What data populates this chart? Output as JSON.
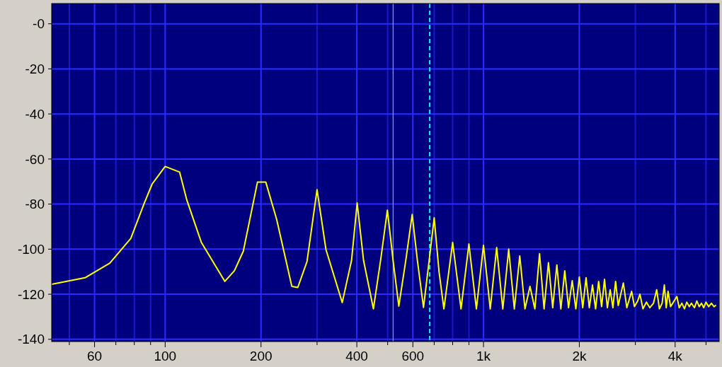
{
  "chart_data": {
    "type": "line",
    "log": "x",
    "grid": true,
    "marker": "none",
    "line_style": "solid",
    "xlim": [
      44,
      5500
    ],
    "ylim": [
      -141,
      9
    ],
    "xticks": [
      {
        "value": 50,
        "label": null
      },
      {
        "value": 60,
        "label": "60"
      },
      {
        "value": 70,
        "label": null
      },
      {
        "value": 80,
        "label": null
      },
      {
        "value": 90,
        "label": null
      },
      {
        "value": 100,
        "label": "100"
      },
      {
        "value": 200,
        "label": "200"
      },
      {
        "value": 300,
        "label": null
      },
      {
        "value": 400,
        "label": "400"
      },
      {
        "value": 500,
        "label": null
      },
      {
        "value": 600,
        "label": "600"
      },
      {
        "value": 700,
        "label": null
      },
      {
        "value": 800,
        "label": null
      },
      {
        "value": 900,
        "label": null
      },
      {
        "value": 1000,
        "label": "1k"
      },
      {
        "value": 2000,
        "label": "2k"
      },
      {
        "value": 3000,
        "label": null
      },
      {
        "value": 4000,
        "label": "4k"
      },
      {
        "value": 5000,
        "label": null
      }
    ],
    "yticks": [
      {
        "value": 0,
        "label": "-0"
      },
      -20,
      -40,
      -60,
      -80,
      -100,
      -120,
      -140
    ],
    "ref_lines": [
      {
        "axis": "x",
        "value": 520,
        "color": "#6fd8e8",
        "line_style": "solid"
      },
      {
        "axis": "x",
        "value": 678,
        "color": "#00ffff",
        "line_style": "dashed"
      }
    ],
    "series": [
      {
        "color": "#ffff00",
        "x": [
          44,
          56,
          67,
          78,
          86,
          91,
          100,
          111,
          117,
          130,
          154,
          165,
          176,
          195,
          207,
          224,
          250,
          261,
          279,
          300,
          320,
          360,
          385,
          401,
          420,
          451,
          475,
          499,
          520,
          542,
          570,
          597,
          620,
          648,
          675,
          700,
          725,
          751,
          800,
          850,
          900,
          950,
          1000,
          1050,
          1100,
          1150,
          1200,
          1250,
          1300,
          1350,
          1400,
          1450,
          1500,
          1550,
          1600,
          1650,
          1700,
          1750,
          1800,
          1850,
          1900,
          1950,
          2000,
          2050,
          2100,
          2150,
          2200,
          2250,
          2300,
          2350,
          2400,
          2450,
          2500,
          2550,
          2600,
          2650,
          2750,
          2820,
          2920,
          2980,
          3050,
          3100,
          3170,
          3250,
          3330,
          3420,
          3500,
          3570,
          3640,
          3700,
          3750,
          3800,
          3870,
          3950,
          4050,
          4120,
          4200,
          4280,
          4350,
          4430,
          4500,
          4600,
          4680,
          4760,
          4840,
          4920,
          5000,
          5100,
          5200,
          5300,
          5360
        ],
        "values": [
          -115.6,
          -112.7,
          -106.2,
          -95.2,
          -79.5,
          -71.1,
          -63.3,
          -65.8,
          -78.3,
          -97.1,
          -114.3,
          -109.6,
          -100.9,
          -70.2,
          -70.2,
          -86.8,
          -116.5,
          -117,
          -105.5,
          -73.6,
          -100.2,
          -123.7,
          -105,
          -79.5,
          -105,
          -126.5,
          -105,
          -82.7,
          -105,
          -125.3,
          -105,
          -84.6,
          -105,
          -125.9,
          -105,
          -86.1,
          -110,
          -126.5,
          -97,
          -126.5,
          -97.7,
          -126.5,
          -98.3,
          -126.5,
          -99.3,
          -126.5,
          -100,
          -126.5,
          -103,
          -126.5,
          -116.5,
          -126.5,
          -102,
          -126.5,
          -106,
          -126,
          -107,
          -126.5,
          -109.6,
          -126,
          -114,
          -126.5,
          -112.4,
          -126,
          -112.7,
          -126,
          -115.9,
          -126.5,
          -114.3,
          -125.5,
          -113.4,
          -126,
          -118,
          -126,
          -114.3,
          -125,
          -115,
          -126,
          -118.7,
          -125.5,
          -123,
          -120,
          -126.5,
          -123.5,
          -126,
          -124,
          -118,
          -126.5,
          -124,
          -115.9,
          -126,
          -118.7,
          -125.5,
          -123.5,
          -121,
          -126,
          -124,
          -126.5,
          -123.5,
          -125.5,
          -124,
          -126,
          -123,
          -125.5,
          -124,
          -126,
          -123.5,
          -125.5,
          -124,
          -125.5,
          -125
        ]
      }
    ]
  }
}
